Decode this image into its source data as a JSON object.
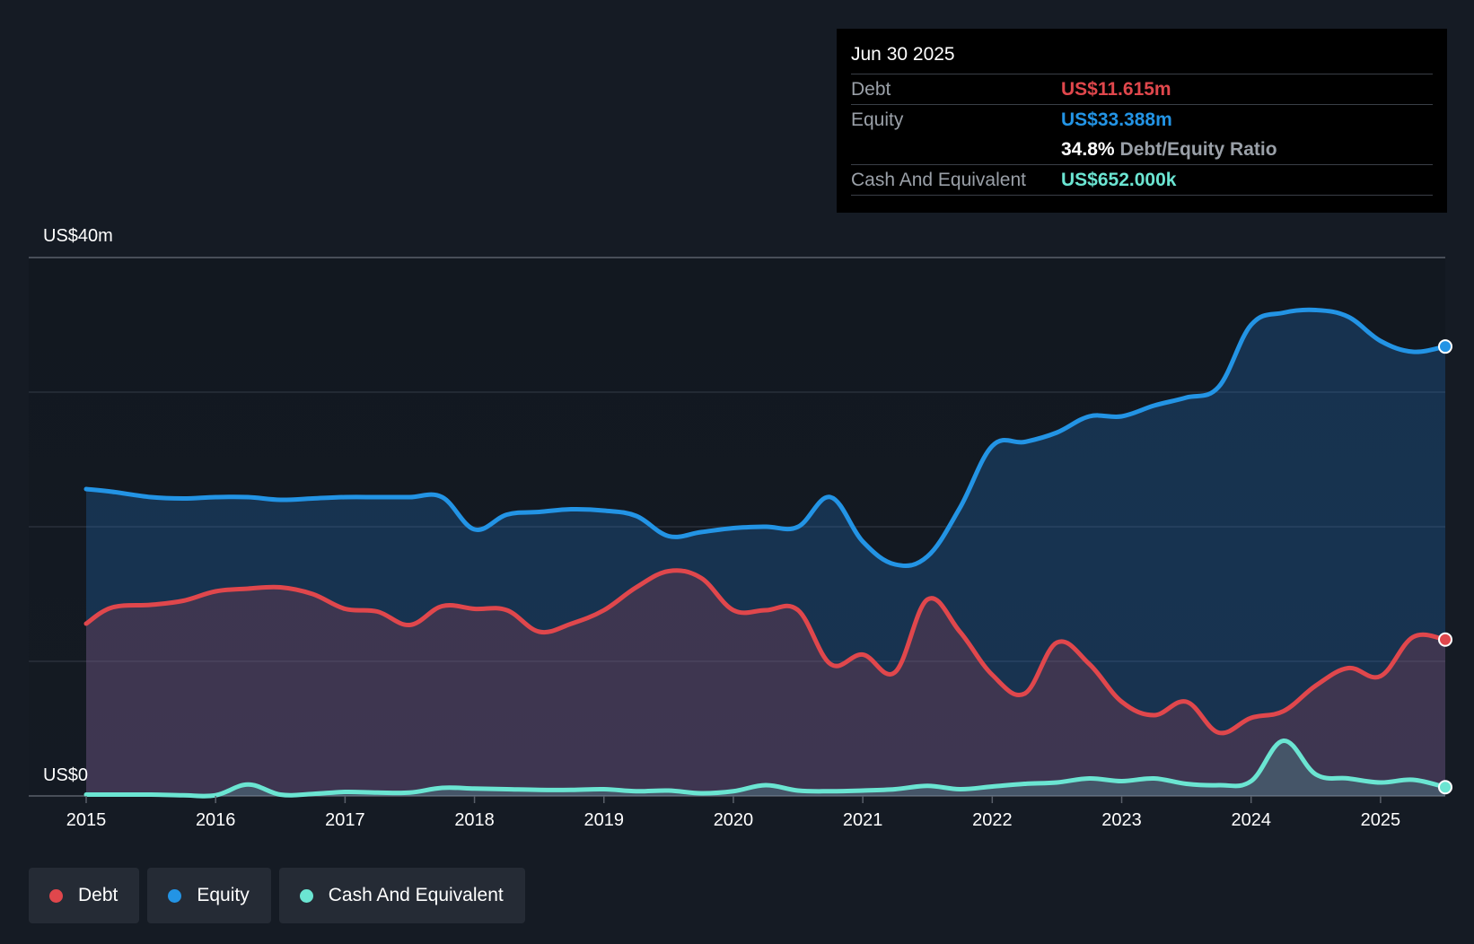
{
  "colors": {
    "debt": "#e0474c",
    "equity": "#2394e5",
    "cash": "#6be5d2",
    "background": "#151b24",
    "grid": "#3a414b"
  },
  "tooltip": {
    "date": "Jun 30 2025",
    "debt_label": "Debt",
    "debt_value": "US$11.615m",
    "equity_label": "Equity",
    "equity_value": "US$33.388m",
    "ratio_value": "34.8%",
    "ratio_label": "Debt/Equity Ratio",
    "cash_label": "Cash And Equivalent",
    "cash_value": "US$652.000k"
  },
  "legend": {
    "items": [
      {
        "label": "Debt",
        "color": "#e0474c"
      },
      {
        "label": "Equity",
        "color": "#2394e5"
      },
      {
        "label": "Cash And Equivalent",
        "color": "#6be5d2"
      }
    ]
  },
  "chart_data": {
    "type": "area",
    "title": "",
    "xlabel": "",
    "ylabel": "",
    "y_top_label": "US$40m",
    "y_bottom_label": "US$0",
    "ylim": [
      0,
      40
    ],
    "xlim": [
      2015.0,
      2025.5
    ],
    "x_ticks": [
      "2015",
      "2016",
      "2017",
      "2018",
      "2019",
      "2020",
      "2021",
      "2022",
      "2023",
      "2024",
      "2025"
    ],
    "grid": true,
    "series": [
      {
        "name": "Equity",
        "x": [
          2015.0,
          2015.2,
          2015.5,
          2015.75,
          2016.0,
          2016.25,
          2016.5,
          2016.75,
          2017.0,
          2017.25,
          2017.5,
          2017.75,
          2018.0,
          2018.25,
          2018.5,
          2018.75,
          2019.0,
          2019.25,
          2019.5,
          2019.75,
          2020.0,
          2020.25,
          2020.5,
          2020.75,
          2021.0,
          2021.25,
          2021.5,
          2021.75,
          2022.0,
          2022.25,
          2022.5,
          2022.75,
          2023.0,
          2023.25,
          2023.5,
          2023.75,
          2024.0,
          2024.25,
          2024.5,
          2024.75,
          2025.0,
          2025.25,
          2025.5
        ],
        "values": [
          22.8,
          22.6,
          22.2,
          22.1,
          22.2,
          22.2,
          22.0,
          22.1,
          22.2,
          22.2,
          22.2,
          22.2,
          19.8,
          20.9,
          21.1,
          21.3,
          21.2,
          20.8,
          19.3,
          19.6,
          19.9,
          20.0,
          20.0,
          22.2,
          18.9,
          17.2,
          17.8,
          21.4,
          26.0,
          26.3,
          27.0,
          28.2,
          28.2,
          29.0,
          29.6,
          30.4,
          35.0,
          35.9,
          36.1,
          35.6,
          33.8,
          33.0,
          33.388
        ]
      },
      {
        "name": "Debt",
        "x": [
          2015.0,
          2015.2,
          2015.5,
          2015.75,
          2016.0,
          2016.25,
          2016.5,
          2016.75,
          2017.0,
          2017.25,
          2017.5,
          2017.75,
          2018.0,
          2018.25,
          2018.5,
          2018.75,
          2019.0,
          2019.25,
          2019.5,
          2019.75,
          2020.0,
          2020.25,
          2020.5,
          2020.75,
          2021.0,
          2021.25,
          2021.5,
          2021.75,
          2022.0,
          2022.25,
          2022.5,
          2022.75,
          2023.0,
          2023.25,
          2023.5,
          2023.75,
          2024.0,
          2024.25,
          2024.5,
          2024.75,
          2025.0,
          2025.25,
          2025.5
        ],
        "values": [
          12.8,
          14.0,
          14.2,
          14.5,
          15.2,
          15.4,
          15.5,
          15.0,
          13.9,
          13.7,
          12.7,
          14.1,
          13.9,
          13.8,
          12.2,
          12.8,
          13.8,
          15.5,
          16.7,
          16.2,
          13.8,
          13.8,
          13.8,
          9.8,
          10.5,
          9.2,
          14.6,
          12.2,
          9.0,
          7.6,
          11.4,
          9.8,
          7.0,
          6.0,
          7.0,
          4.7,
          5.8,
          6.3,
          8.2,
          9.5,
          8.9,
          11.8,
          11.615
        ]
      },
      {
        "name": "Cash And Equivalent",
        "x": [
          2015.0,
          2015.25,
          2015.5,
          2015.75,
          2016.0,
          2016.25,
          2016.5,
          2016.75,
          2017.0,
          2017.25,
          2017.5,
          2017.75,
          2018.0,
          2018.25,
          2018.5,
          2018.75,
          2019.0,
          2019.25,
          2019.5,
          2019.75,
          2020.0,
          2020.25,
          2020.5,
          2020.75,
          2021.0,
          2021.25,
          2021.5,
          2021.75,
          2022.0,
          2022.25,
          2022.5,
          2022.75,
          2023.0,
          2023.25,
          2023.5,
          2023.75,
          2024.0,
          2024.25,
          2024.5,
          2024.75,
          2025.0,
          2025.25,
          2025.5
        ],
        "values": [
          0.1,
          0.1,
          0.1,
          0.05,
          0.05,
          0.85,
          0.1,
          0.15,
          0.3,
          0.25,
          0.25,
          0.6,
          0.55,
          0.5,
          0.45,
          0.45,
          0.5,
          0.35,
          0.4,
          0.2,
          0.35,
          0.8,
          0.4,
          0.35,
          0.4,
          0.5,
          0.75,
          0.5,
          0.7,
          0.9,
          1.0,
          1.3,
          1.1,
          1.3,
          0.9,
          0.8,
          1.1,
          4.1,
          1.6,
          1.3,
          1.0,
          1.2,
          0.652
        ]
      }
    ]
  }
}
